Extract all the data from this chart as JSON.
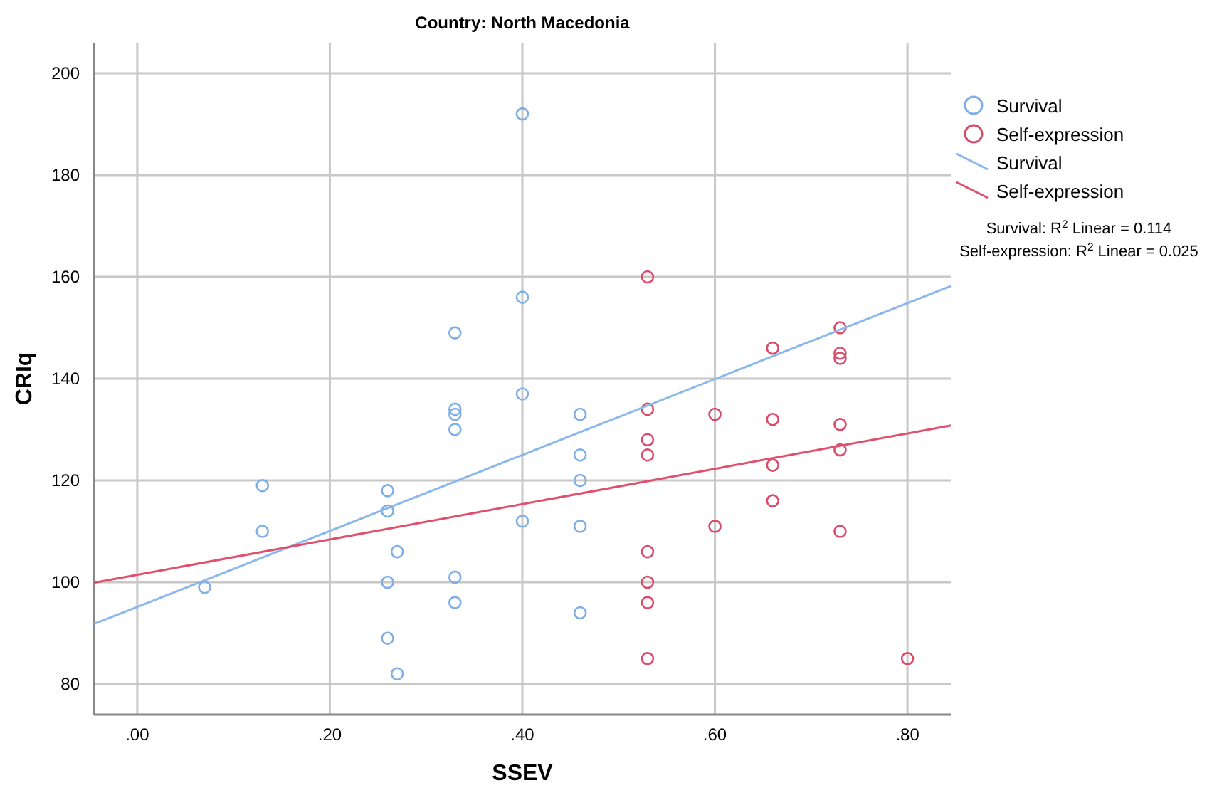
{
  "chart_data": {
    "type": "scatter",
    "title": "Country: North Macedonia",
    "xlabel": "SSEV",
    "ylabel": "CRIq",
    "xlim": [
      -0.045,
      0.845
    ],
    "ylim": [
      74,
      206
    ],
    "xticks": [
      {
        "value": 0,
        "label": ".00"
      },
      {
        "value": 0.2,
        "label": ".20"
      },
      {
        "value": 0.4,
        "label": ".40"
      },
      {
        "value": 0.6,
        "label": ".60"
      },
      {
        "value": 0.8,
        "label": ".80"
      }
    ],
    "yticks": [
      80,
      100,
      120,
      140,
      160,
      180,
      200
    ],
    "grid": true,
    "legend": "right",
    "marker": "circle",
    "series": [
      {
        "name": "Survival",
        "color": "#7eaee8",
        "x": [
          0.07,
          0.13,
          0.13,
          0.26,
          0.26,
          0.26,
          0.26,
          0.27,
          0.27,
          0.33,
          0.33,
          0.33,
          0.33,
          0.33,
          0.33,
          0.4,
          0.4,
          0.4,
          0.4,
          0.46,
          0.46,
          0.46,
          0.46,
          0.46
        ],
        "values": [
          99,
          119,
          110,
          118,
          114,
          100,
          89,
          106,
          82,
          149,
          134,
          133,
          130,
          101,
          96,
          192,
          156,
          137,
          112,
          133,
          125,
          120,
          111,
          94
        ]
      },
      {
        "name": "Self-expression",
        "color": "#dc4a6a",
        "x": [
          0.53,
          0.53,
          0.53,
          0.53,
          0.53,
          0.53,
          0.53,
          0.53,
          0.6,
          0.6,
          0.66,
          0.66,
          0.66,
          0.66,
          0.73,
          0.73,
          0.73,
          0.73,
          0.73,
          0.73,
          0.8
        ],
        "values": [
          160,
          134,
          128,
          125,
          106,
          100,
          96,
          85,
          133,
          111,
          146,
          132,
          123,
          116,
          150,
          145,
          144,
          131,
          126,
          110,
          85
        ]
      },
      {
        "name": "Survival",
        "type": "line",
        "marker": "none",
        "color": "#8ab8ec",
        "x": [
          -0.045,
          0.845
        ],
        "values": [
          91.8,
          158.2
        ]
      },
      {
        "name": "Self-expression",
        "type": "line",
        "marker": "none",
        "color": "#e0506e",
        "x": [
          -0.045,
          0.845
        ],
        "values": [
          99.9,
          130.8
        ]
      }
    ],
    "annotations": [
      "Survival: R$^{2}$ Linear = 0.114",
      "Self-expression: R$^{2}$ Linear = 0.025"
    ]
  }
}
